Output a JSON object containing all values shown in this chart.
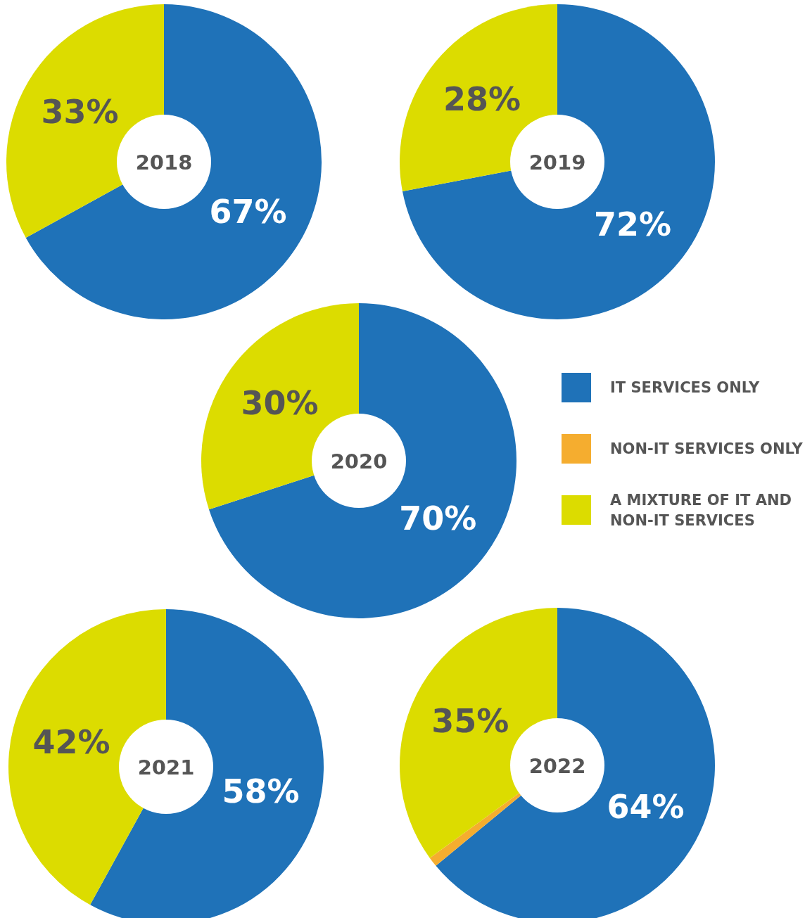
{
  "chart_data": [
    {
      "type": "donut",
      "title": "2018",
      "categories": [
        null,
        null
      ],
      "values": [
        67,
        33
      ],
      "colors": [
        "#1f72b8",
        "#dcdc00"
      ],
      "value_labels": [
        "67%",
        "33%"
      ],
      "legend": false
    },
    {
      "type": "donut",
      "title": "2019",
      "categories": [
        null,
        null
      ],
      "values": [
        72,
        28
      ],
      "colors": [
        "#1f72b8",
        "#dcdc00"
      ],
      "value_labels": [
        "72%",
        "28%"
      ],
      "legend": false
    },
    {
      "type": "donut",
      "title": "2020",
      "categories": [
        "IT SERVICES ONLY",
        "NON-IT SERVICES ONLY",
        "A MIXTURE OF IT AND NON-IT SERVICES"
      ],
      "values": [
        70,
        0,
        30
      ],
      "colors": [
        "#1f72b8",
        "#f5ad2f",
        "#dcdc00"
      ],
      "value_labels": [
        "70%",
        null,
        "30%"
      ],
      "legend": "right"
    },
    {
      "type": "donut",
      "title": "2021",
      "categories": [
        null,
        null
      ],
      "values": [
        58,
        42
      ],
      "colors": [
        "#1f72b8",
        "#dcdc00"
      ],
      "value_labels": [
        "58%",
        "42%"
      ],
      "legend": false
    },
    {
      "type": "donut",
      "title": "2022",
      "categories": [
        null,
        null,
        null
      ],
      "values": [
        64,
        1,
        35
      ],
      "colors": [
        "#1f72b8",
        "#f5ad2f",
        "#dcdc00"
      ],
      "value_labels": [
        "64%",
        null,
        "35%"
      ],
      "legend": false
    }
  ]
}
